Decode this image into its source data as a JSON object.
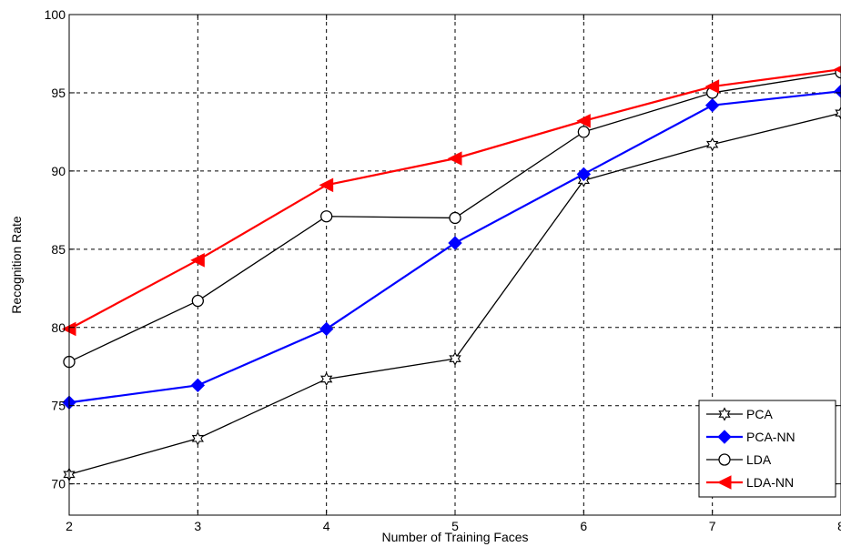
{
  "chart_data": {
    "type": "line",
    "title": "",
    "xlabel": "Number of Training Faces",
    "ylabel": "Recognition Rate",
    "xlim": [
      2,
      8
    ],
    "ylim": [
      68,
      100
    ],
    "x_ticks": [
      2,
      3,
      4,
      5,
      6,
      7,
      8
    ],
    "y_ticks": [
      70,
      75,
      80,
      85,
      90,
      95,
      100
    ],
    "grid": true,
    "legend_position": "bottom-right",
    "x": [
      2,
      3,
      4,
      5,
      6,
      7,
      8
    ],
    "series": [
      {
        "name": "PCA",
        "color": "#000000",
        "marker": "hexagram",
        "marker_fill": "#ffffff",
        "values": [
          70.6,
          72.9,
          76.7,
          78.0,
          89.4,
          91.7,
          93.7
        ]
      },
      {
        "name": "PCA-NN",
        "color": "#0000ff",
        "marker": "diamond",
        "marker_fill": "#0000ff",
        "values": [
          75.2,
          76.3,
          79.9,
          85.4,
          89.8,
          94.2,
          95.1
        ]
      },
      {
        "name": "LDA",
        "color": "#000000",
        "marker": "circle",
        "marker_fill": "#ffffff",
        "values": [
          77.8,
          81.7,
          87.1,
          87.0,
          92.5,
          95.0,
          96.3
        ]
      },
      {
        "name": "LDA-NN",
        "color": "#ff0000",
        "marker": "triangle-left",
        "marker_fill": "#ff0000",
        "values": [
          79.9,
          84.3,
          89.1,
          90.8,
          93.2,
          95.4,
          96.5
        ]
      }
    ]
  }
}
